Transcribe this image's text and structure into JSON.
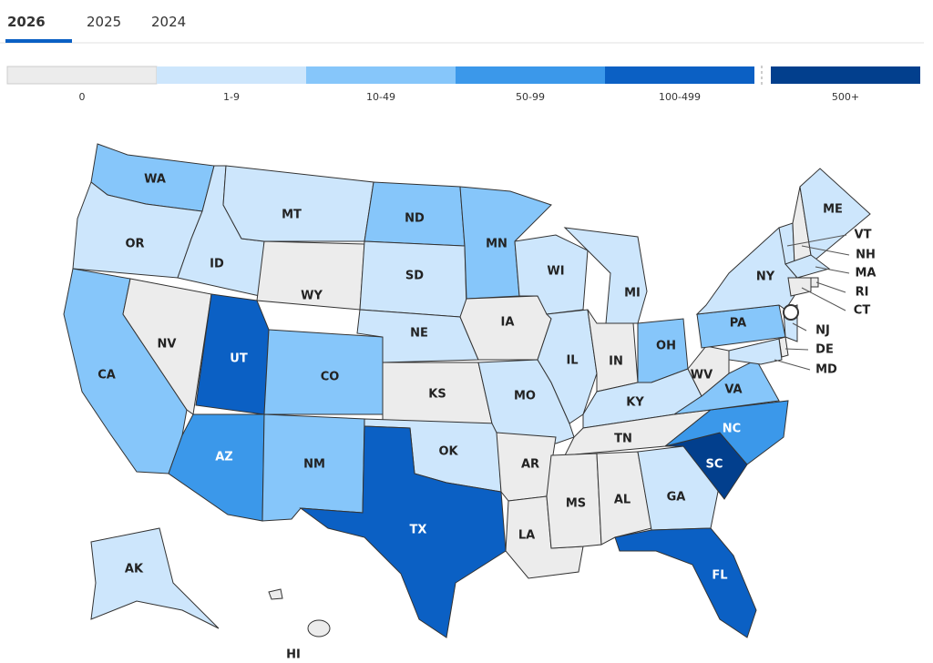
{
  "tabs": [
    "2026",
    "2025",
    "2024"
  ],
  "active_tab": 0,
  "legend": [
    {
      "label": "0",
      "color": "#ececec"
    },
    {
      "label": "1-9",
      "color": "#cde6fc"
    },
    {
      "label": "10-49",
      "color": "#86c6fa"
    },
    {
      "label": "50-99",
      "color": "#3b98ea"
    },
    {
      "label": "100-499",
      "color": "#0b60c4"
    },
    {
      "label": "500+",
      "color": "#023f8d"
    }
  ],
  "states": [
    {
      "label": "WA",
      "bin": 2
    },
    {
      "label": "OR",
      "bin": 1
    },
    {
      "label": "CA",
      "bin": 2
    },
    {
      "label": "NV",
      "bin": 0
    },
    {
      "label": "ID",
      "bin": 1
    },
    {
      "label": "MT",
      "bin": 1
    },
    {
      "label": "WY",
      "bin": 0
    },
    {
      "label": "UT",
      "bin": 4
    },
    {
      "label": "AZ",
      "bin": 3
    },
    {
      "label": "CO",
      "bin": 2
    },
    {
      "label": "NM",
      "bin": 2
    },
    {
      "label": "ND",
      "bin": 2
    },
    {
      "label": "SD",
      "bin": 1
    },
    {
      "label": "NE",
      "bin": 1
    },
    {
      "label": "KS",
      "bin": 0
    },
    {
      "label": "OK",
      "bin": 1
    },
    {
      "label": "TX",
      "bin": 4
    },
    {
      "label": "MN",
      "bin": 2
    },
    {
      "label": "IA",
      "bin": 0
    },
    {
      "label": "MO",
      "bin": 1
    },
    {
      "label": "AR",
      "bin": 0
    },
    {
      "label": "LA",
      "bin": 0
    },
    {
      "label": "WI",
      "bin": 1
    },
    {
      "label": "IL",
      "bin": 1
    },
    {
      "label": "MI",
      "bin": 1
    },
    {
      "label": "IN",
      "bin": 0
    },
    {
      "label": "OH",
      "bin": 2
    },
    {
      "label": "KY",
      "bin": 1
    },
    {
      "label": "TN",
      "bin": 0
    },
    {
      "label": "MS",
      "bin": 0
    },
    {
      "label": "AL",
      "bin": 0
    },
    {
      "label": "GA",
      "bin": 1
    },
    {
      "label": "FL",
      "bin": 4
    },
    {
      "label": "SC",
      "bin": 5
    },
    {
      "label": "NC",
      "bin": 3
    },
    {
      "label": "VA",
      "bin": 2
    },
    {
      "label": "WV",
      "bin": 0
    },
    {
      "label": "PA",
      "bin": 2
    },
    {
      "label": "NY",
      "bin": 1
    },
    {
      "label": "VT",
      "bin": 1
    },
    {
      "label": "NH",
      "bin": 0
    },
    {
      "label": "ME",
      "bin": 1
    },
    {
      "label": "MA",
      "bin": 1
    },
    {
      "label": "RI",
      "bin": 0
    },
    {
      "label": "CT",
      "bin": 0
    },
    {
      "label": "NJ",
      "bin": 1
    },
    {
      "label": "DE",
      "bin": 0
    },
    {
      "label": "MD",
      "bin": 1
    },
    {
      "label": "AK",
      "bin": 1
    },
    {
      "label": "HI",
      "bin": 0
    }
  ]
}
